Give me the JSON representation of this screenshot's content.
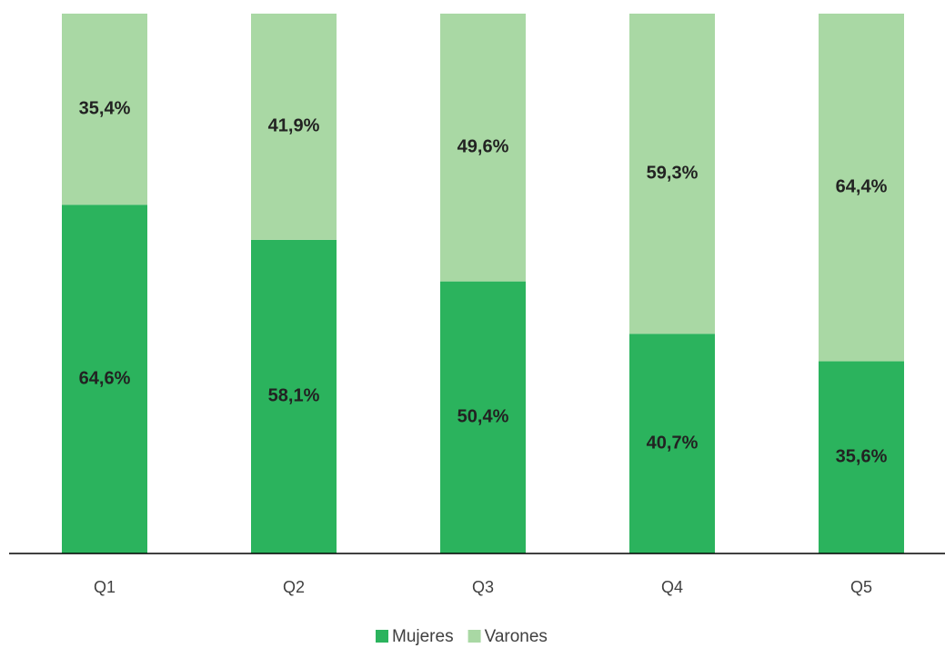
{
  "chart_data": {
    "type": "stacked_bar",
    "categories": [
      "Q1",
      "Q2",
      "Q3",
      "Q4",
      "Q5"
    ],
    "series": [
      {
        "name": "Mujeres",
        "color": "#2bb35d",
        "values": [
          64.6,
          58.1,
          50.4,
          40.7,
          35.6
        ],
        "value_labels": [
          "64,6%",
          "58,1%",
          "50,4%",
          "40,7%",
          "35,6%"
        ]
      },
      {
        "name": "Varones",
        "color": "#a9d8a4",
        "values": [
          35.4,
          41.9,
          49.6,
          59.3,
          64.4
        ],
        "value_labels": [
          "35,4%",
          "41,9%",
          "49,6%",
          "59,3%",
          "64,4%"
        ]
      }
    ],
    "ylim": [
      0,
      100
    ],
    "legend": "bottom"
  }
}
